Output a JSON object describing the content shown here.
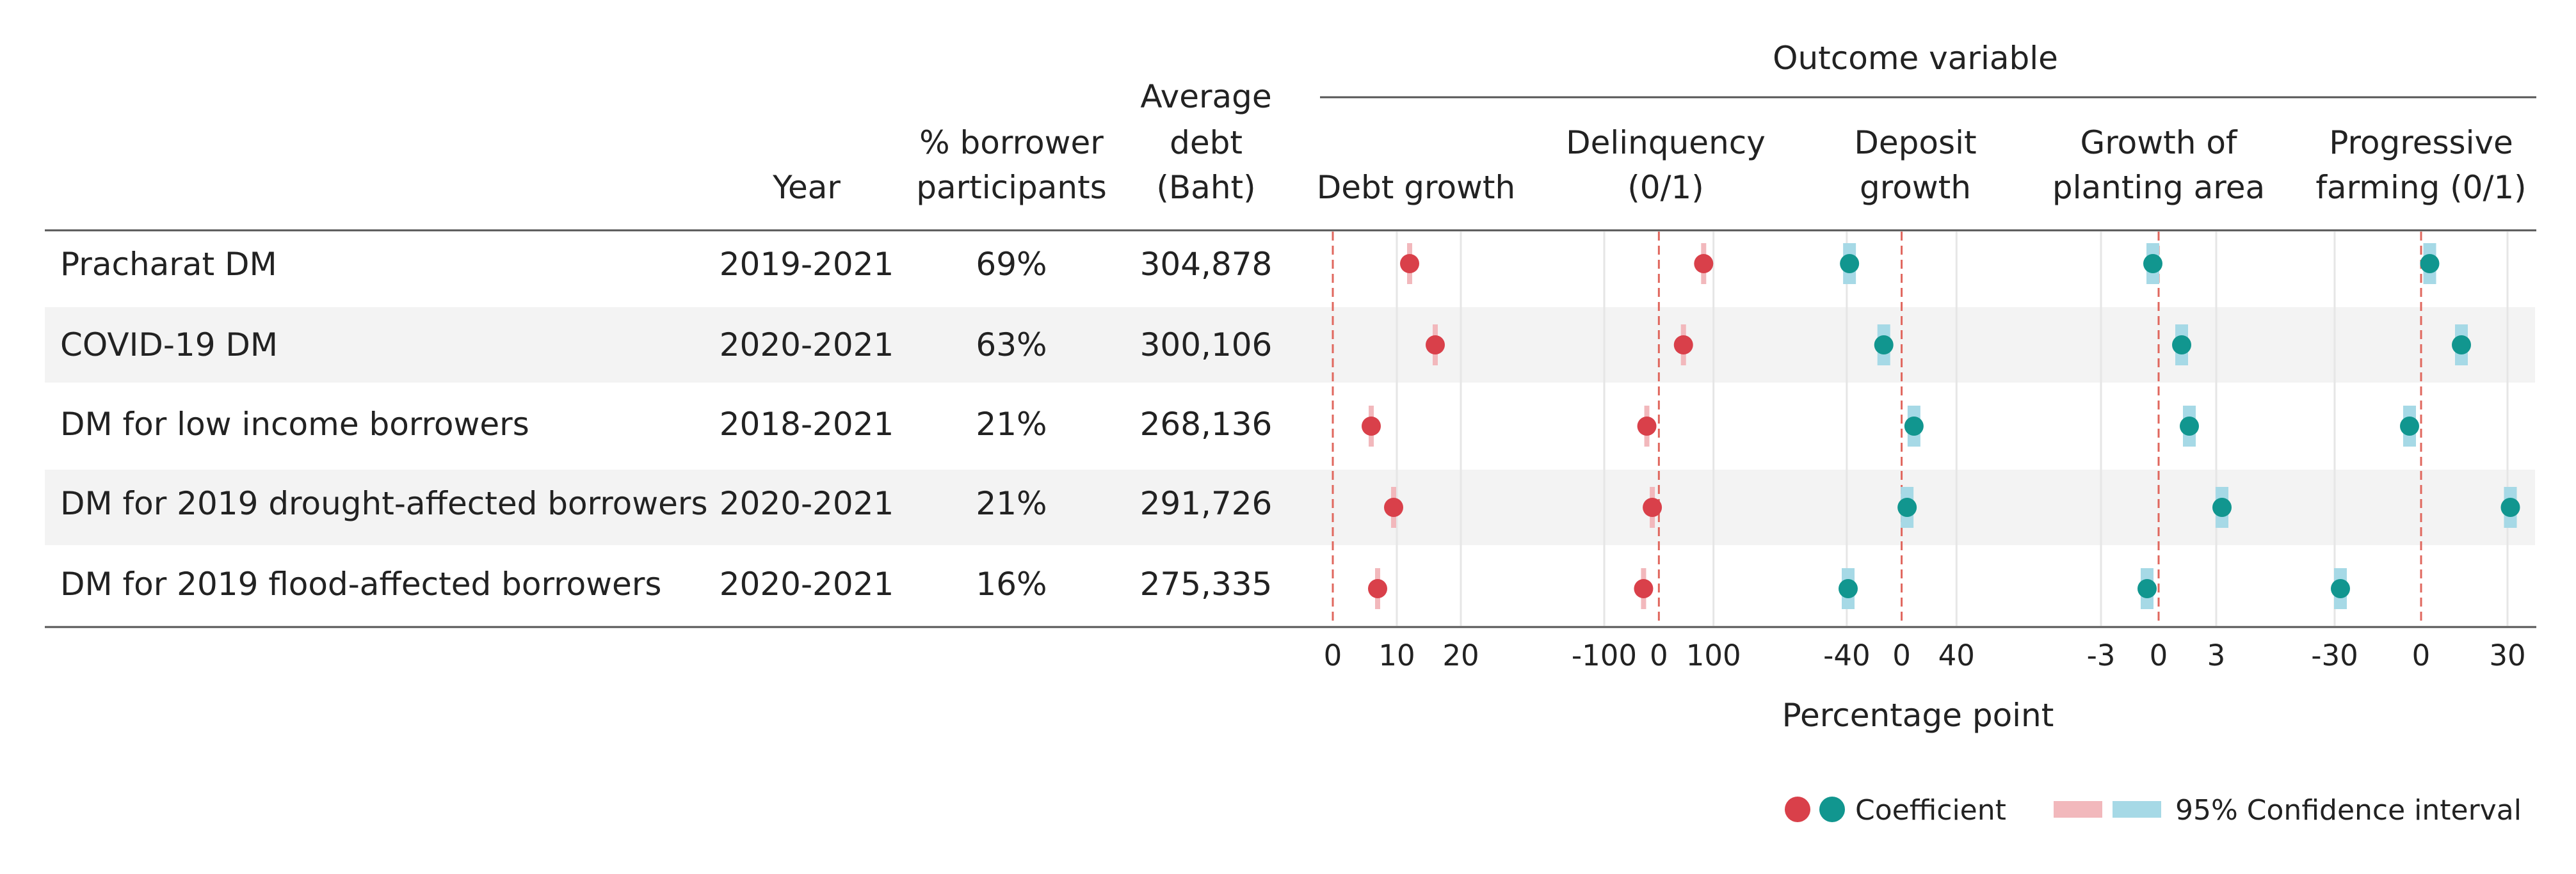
{
  "table": {
    "headers": {
      "year": [
        "Year"
      ],
      "participants": [
        "% borrower",
        "participants"
      ],
      "debt": [
        "Average",
        "debt",
        "(Baht)"
      ]
    },
    "rows": [
      {
        "program": "Pracharat DM",
        "year": "2019-2021",
        "participants": "69%",
        "debt": "304,878"
      },
      {
        "program": "COVID-19 DM",
        "year": "2020-2021",
        "participants": "63%",
        "debt": "300,106"
      },
      {
        "program": "DM for low income borrowers",
        "year": "2018-2021",
        "participants": "21%",
        "debt": "268,136"
      },
      {
        "program": "DM for 2019 drought-affected borrowers",
        "year": "2020-2021",
        "participants": "21%",
        "debt": "291,726"
      },
      {
        "program": "DM for 2019 flood-affected borrowers",
        "year": "2020-2021",
        "participants": "16%",
        "debt": "275,335"
      }
    ]
  },
  "outcome_title": "Outcome variable",
  "x_axis_label": "Percentage point",
  "legend": {
    "coefficient": "Coefficient",
    "ci": "95% Confidence interval"
  },
  "colors": {
    "red": "#d9404a",
    "red_ci": "#f2b8bc",
    "teal": "#11968f",
    "teal_ci": "#a6d9e6",
    "zero_line": "#e0675e",
    "band": "#f3f3f3",
    "rule": "#555555",
    "grid": "#e6e6e6"
  },
  "chart_data": [
    {
      "type": "scatter",
      "title": [
        "Debt growth"
      ],
      "color": "red",
      "xlim": [
        -2,
        28
      ],
      "ticks": [
        0,
        10,
        20
      ],
      "tick_labels": [
        "0",
        "10",
        "20"
      ],
      "categories": [
        "Pracharat DM",
        "COVID-19 DM",
        "DM for low income borrowers",
        "DM for 2019 drought-affected borrowers",
        "DM for 2019 flood-affected borrowers"
      ],
      "values": [
        12,
        16,
        6,
        9.5,
        7
      ],
      "ci_low": [
        11,
        15,
        5,
        8.5,
        6
      ],
      "ci_high": [
        13,
        17,
        7,
        10.5,
        8
      ]
    },
    {
      "type": "scatter",
      "title": [
        "Delinquency",
        "(0/1)"
      ],
      "color": "red",
      "xlim": [
        -175,
        200
      ],
      "ticks": [
        -100,
        0,
        100
      ],
      "tick_labels": [
        "-100",
        "0",
        "100"
      ],
      "categories": [
        "Pracharat DM",
        "COVID-19 DM",
        "DM for low income borrowers",
        "DM for 2019 drought-affected borrowers",
        "DM for 2019 flood-affected borrowers"
      ],
      "values": [
        82,
        45,
        -22,
        -12,
        -28
      ],
      "ci_low": [
        74,
        37,
        -30,
        -20,
        -36
      ],
      "ci_high": [
        90,
        53,
        -14,
        -4,
        -20
      ]
    },
    {
      "type": "scatter",
      "title": [
        "Deposit",
        "growth"
      ],
      "color": "teal",
      "xlim": [
        -60,
        80
      ],
      "ticks": [
        -40,
        0,
        40
      ],
      "tick_labels": [
        "-40",
        "0",
        "40"
      ],
      "categories": [
        "Pracharat DM",
        "COVID-19 DM",
        "DM for low income borrowers",
        "DM for 2019 drought-affected borrowers",
        "DM for 2019 flood-affected borrowers"
      ],
      "values": [
        -38,
        -13,
        9,
        4,
        -39
      ],
      "ci_low": [
        -42,
        -17,
        5,
        0,
        -43
      ],
      "ci_high": [
        -34,
        -9,
        13,
        8,
        -35
      ]
    },
    {
      "type": "scatter",
      "title": [
        "Growth of",
        "planting area"
      ],
      "color": "teal",
      "xlim": [
        -5,
        5
      ],
      "ticks": [
        -3,
        0,
        3
      ],
      "tick_labels": [
        "-3",
        "0",
        "3"
      ],
      "categories": [
        "Pracharat DM",
        "COVID-19 DM",
        "DM for low income borrowers",
        "DM for 2019 drought-affected borrowers",
        "DM for 2019 flood-affected borrowers"
      ],
      "values": [
        -0.3,
        1.2,
        1.6,
        3.3,
        -0.6
      ],
      "ci_low": [
        -0.6,
        0.9,
        1.3,
        3.0,
        -0.9
      ],
      "ci_high": [
        0.0,
        1.5,
        1.9,
        3.6,
        -0.3
      ]
    },
    {
      "type": "scatter",
      "title": [
        "Progressive",
        "farming (0/1)"
      ],
      "color": "teal",
      "xlim": [
        -40,
        40
      ],
      "ticks": [
        -30,
        0,
        30
      ],
      "tick_labels": [
        "-30",
        "0",
        "30"
      ],
      "categories": [
        "Pracharat DM",
        "COVID-19 DM",
        "DM for low income borrowers",
        "DM for 2019 drought-affected borrowers",
        "DM for 2019 flood-affected borrowers"
      ],
      "values": [
        3,
        14,
        -4,
        31,
        -28
      ],
      "ci_low": [
        0,
        11,
        -7,
        28,
        -31
      ],
      "ci_high": [
        6,
        17,
        -1,
        34,
        -25
      ]
    }
  ]
}
